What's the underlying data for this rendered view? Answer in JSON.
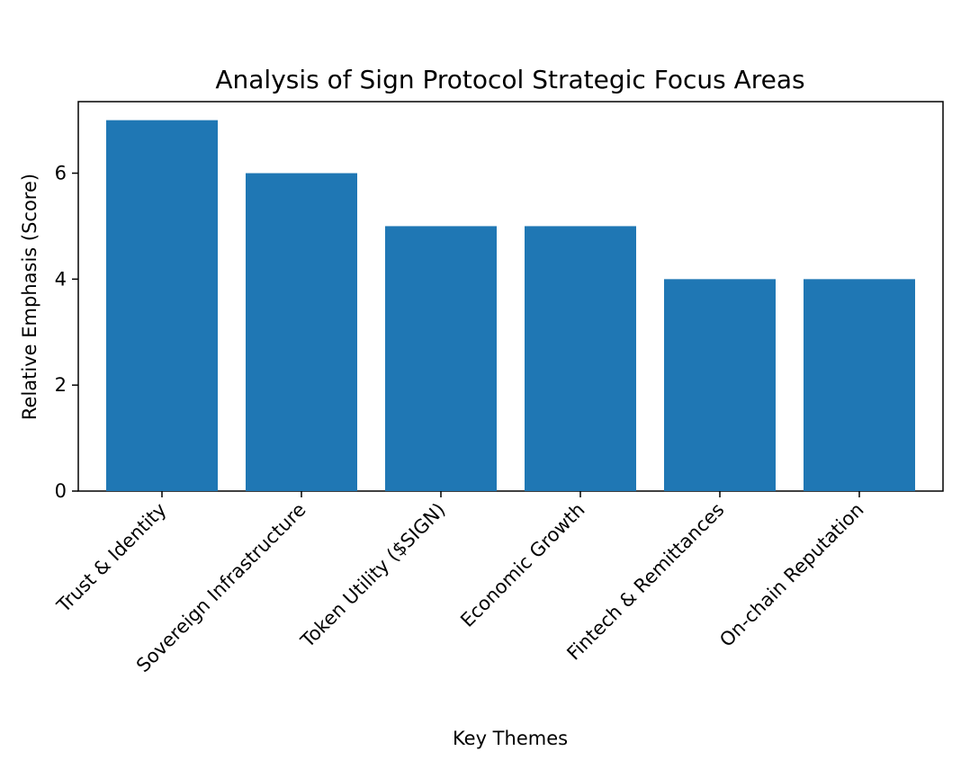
{
  "chart_data": {
    "type": "bar",
    "title": "Analysis of Sign Protocol Strategic Focus Areas",
    "xlabel": "Key Themes",
    "ylabel": "Relative Emphasis (Score)",
    "categories": [
      "Trust & Identity",
      "Sovereign Infrastructure",
      "Token Utility ($SIGN)",
      "Economic Growth",
      "Fintech & Remittances",
      "On-chain Reputation"
    ],
    "values": [
      7,
      6,
      5,
      5,
      4,
      4
    ],
    "ylim": [
      0,
      7.35
    ],
    "yticks": [
      0,
      2,
      4,
      6
    ],
    "bar_color": "#1f77b4",
    "grid": false,
    "legend": false
  }
}
